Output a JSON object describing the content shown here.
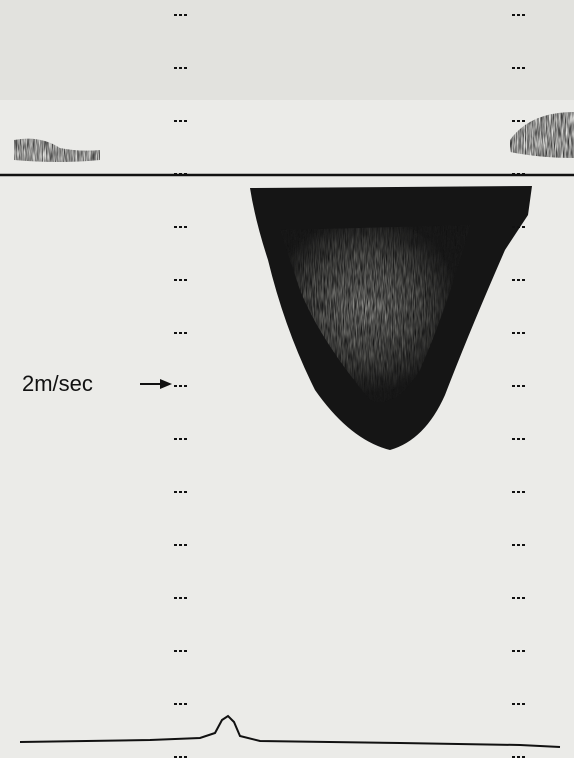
{
  "scale_label": "2m/sec"
}
